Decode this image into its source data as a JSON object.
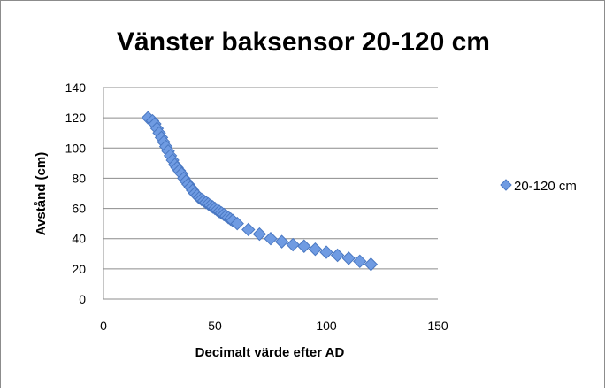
{
  "chart_data": {
    "type": "scatter",
    "title": "Vänster baksensor  20-120 cm",
    "xlabel": "Decimalt värde efter AD",
    "ylabel": "Avstånd (cm)",
    "xlim": [
      0,
      150
    ],
    "ylim": [
      0,
      140
    ],
    "xticks": [
      "0",
      "50",
      "100",
      "150"
    ],
    "yticks": [
      "0",
      "20",
      "40",
      "60",
      "80",
      "100",
      "120",
      "140"
    ],
    "grid": "horizontal",
    "legend_position": "right",
    "marker": "diamond",
    "series": [
      {
        "name": "20-120 cm",
        "color": "#6f9be2",
        "x": [
          20,
          22,
          23,
          24,
          25,
          26,
          27,
          28,
          29,
          30,
          31,
          32,
          33,
          34,
          35,
          36,
          37,
          38,
          39,
          40,
          41,
          42,
          43,
          44,
          45,
          46,
          47,
          48,
          49,
          50,
          51,
          52,
          53,
          54,
          55,
          56,
          57,
          58,
          60,
          65,
          70,
          75,
          80,
          85,
          90,
          95,
          100,
          105,
          110,
          115,
          120
        ],
        "y": [
          120,
          118,
          116,
          113,
          110,
          107,
          104,
          101,
          98,
          95,
          92,
          89,
          87,
          85,
          83,
          80,
          78,
          76,
          74,
          72,
          70,
          68.5,
          67,
          66,
          65,
          64,
          63,
          62,
          61,
          60,
          59,
          58,
          57,
          56,
          55,
          54,
          53,
          52,
          50,
          46,
          43,
          40,
          38,
          36,
          35,
          33,
          31,
          29,
          27,
          25,
          23
        ]
      }
    ]
  }
}
